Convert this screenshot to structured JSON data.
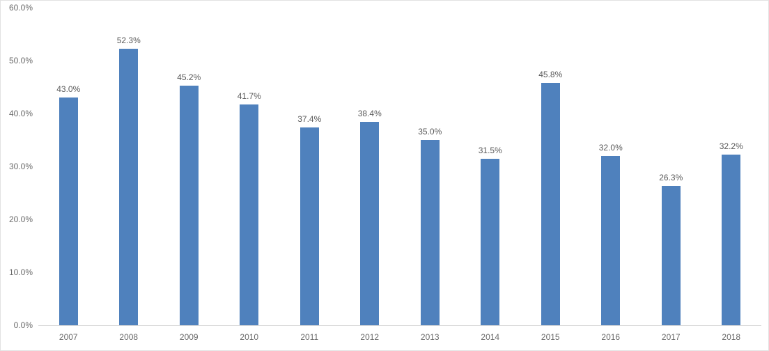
{
  "chart_data": {
    "type": "bar",
    "title": "",
    "xlabel": "",
    "ylabel": "",
    "categories": [
      "2007",
      "2008",
      "2009",
      "2010",
      "2011",
      "2012",
      "2013",
      "2014",
      "2015",
      "2016",
      "2017",
      "2018"
    ],
    "values": [
      43.0,
      52.3,
      45.2,
      41.7,
      37.4,
      38.4,
      35.0,
      31.5,
      45.8,
      32.0,
      26.3,
      32.2
    ],
    "data_labels": [
      "43.0%",
      "52.3%",
      "45.2%",
      "41.7%",
      "37.4%",
      "38.4%",
      "35.0%",
      "31.5%",
      "45.8%",
      "32.0%",
      "26.3%",
      "32.2%"
    ],
    "ylim": [
      0,
      60
    ],
    "ytick_interval": 10,
    "ytick_labels": [
      "0.0%",
      "10.0%",
      "20.0%",
      "30.0%",
      "40.0%",
      "50.0%",
      "60.0%"
    ],
    "grid": false,
    "legend": "none",
    "colors": {
      "bar": "#4f81bd",
      "axis_line": "#d9d9d9",
      "tick_label": "#6a6a6a",
      "data_label": "#595959",
      "frame_border": "#e2e2e2",
      "background": "#ffffff"
    }
  }
}
